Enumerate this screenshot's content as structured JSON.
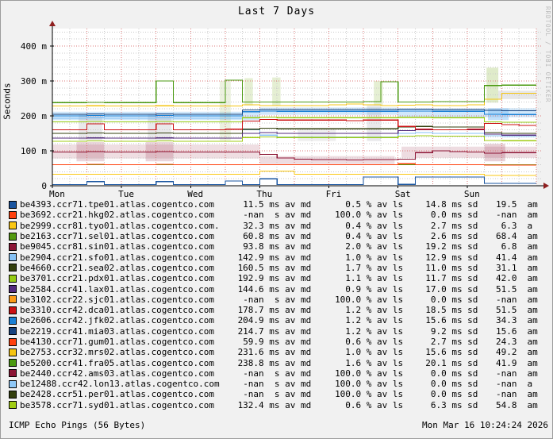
{
  "title": "Last 7 Days",
  "y_axis_label": "Seconds",
  "watermark": "RRDTOOL / TOBI OETIKER",
  "footer": {
    "left": "ICMP Echo Pings (56 Bytes)",
    "right": "Mon Mar 16 10:24:24 2026"
  },
  "colors": {
    "page_bg": "#f1f1f1",
    "plot_bg": "#ffffff",
    "axis": "#000000",
    "arrow": "#8f1f1f",
    "grid_minor": "#c9c9c9",
    "grid_major": "#dd7a7a",
    "text": "#000000",
    "watermark": "#b9b9b9"
  },
  "chart_data": {
    "type": "line",
    "title": "Last 7 Days",
    "ylabel": "Seconds",
    "ylim_ms": [
      0,
      450
    ],
    "xlim_days": [
      0,
      7
    ],
    "x_step_hours": 6,
    "grid": "dotted, minor 20 ms / 6 h, major 100 ms / 12 h",
    "legend_position": "below",
    "x_ticks": [
      "Mon",
      "Tue",
      "Wed",
      "Thu",
      "Fri",
      "Sat",
      "Sun"
    ],
    "y_ticks": [
      {
        "v": 0,
        "label": "0"
      },
      {
        "v": 100,
        "label": "100 m"
      },
      {
        "v": 200,
        "label": "200 m"
      },
      {
        "v": 300,
        "label": "300 m"
      },
      {
        "v": 400,
        "label": "400 m"
      }
    ],
    "series": [
      {
        "name": "be4393.ccr71.tpe01.atlas.cogentco.com",
        "color": "#1a55a0",
        "av_md": "11.5 ms av md",
        "av_ls": "0.5 % av ls",
        "sd": "14.8 ms sd",
        "am_val": "19.5",
        "am_unit": "am",
        "values": [
          3,
          3,
          12,
          3,
          3,
          3,
          12,
          3,
          3,
          3,
          14,
          3,
          20,
          3,
          3,
          3,
          3,
          3,
          25,
          25,
          4,
          25,
          25,
          25,
          25,
          7,
          7,
          7,
          7
        ]
      },
      {
        "name": "be3692.ccr21.hkg02.atlas.cogentco.com",
        "color": "#ff400d",
        "av_md": "-nan  s av md",
        "av_ls": "100.0 % av ls",
        "sd": "0.0 ms sd",
        "am_val": "-nan",
        "am_unit": "am",
        "values": null
      },
      {
        "name": "be2999.ccr81.tyo01.atlas.cogentco.com.",
        "color": "#fac713",
        "av_md": "32.3 ms av md",
        "av_ls": "0.4 % av ls",
        "sd": "2.7 ms sd",
        "am_val": "6.3",
        "am_unit": "a",
        "values": [
          33,
          33,
          33,
          33,
          33,
          33,
          33,
          33,
          33,
          33,
          33,
          33,
          42,
          42,
          33,
          33,
          33,
          33,
          33,
          33,
          33,
          33,
          33,
          33,
          33,
          30,
          30,
          30,
          30
        ]
      },
      {
        "name": "be2163.ccr71.sel01.atlas.cogentco.com",
        "color": "#539a10",
        "av_md": "60.8 ms av md",
        "av_ls": "0.4 % av ls",
        "sd": "2.6 ms sd",
        "am_val": "68.4",
        "am_unit": "am",
        "values": [
          60,
          60,
          60,
          60,
          60,
          60,
          60,
          60,
          60,
          60,
          60,
          60,
          60,
          60,
          60,
          60,
          60,
          60,
          60,
          60,
          60,
          60,
          60,
          60,
          60,
          60,
          60,
          60,
          60
        ]
      },
      {
        "name": "be9045.ccr81.sin01.atlas.cogentco.com",
        "color": "#8c1535",
        "av_md": "93.8 ms av md",
        "av_ls": "2.0 % av ls",
        "sd": "19.2 ms sd",
        "am_val": "6.8",
        "am_unit": "am",
        "values": [
          97,
          97,
          98,
          97,
          97,
          97,
          98,
          97,
          97,
          97,
          97,
          97,
          90,
          80,
          76,
          75,
          75,
          74,
          75,
          75,
          76,
          95,
          100,
          98,
          97,
          93,
          95,
          95,
          95
        ]
      },
      {
        "name": "be2904.ccr21.sfo01.atlas.cogentco.com",
        "color": "#86c2f5",
        "av_md": "142.9 ms av md",
        "av_ls": "1.0 % av ls",
        "sd": "12.9 ms sd",
        "am_val": "41.4",
        "am_unit": "am",
        "values": [
          193,
          193,
          195,
          193,
          193,
          193,
          195,
          193,
          193,
          193,
          193,
          160,
          145,
          140,
          140,
          140,
          140,
          140,
          140,
          140,
          150,
          152,
          150,
          150,
          150,
          143,
          141,
          141,
          141
        ]
      },
      {
        "name": "be4660.ccr21.sea02.atlas.cogentco.com",
        "color": "#333f0d",
        "av_md": "160.5 ms av md",
        "av_ls": "1.7 % av ls",
        "sd": "11.0 ms sd",
        "am_val": "31.1",
        "am_unit": "am",
        "values": [
          150,
          150,
          151,
          150,
          150,
          150,
          151,
          150,
          150,
          150,
          150,
          162,
          165,
          163,
          163,
          163,
          163,
          163,
          163,
          163,
          168,
          170,
          168,
          168,
          168,
          152,
          150,
          150,
          150
        ]
      },
      {
        "name": "be3701.ccr21.pdx01.atlas.cogentco.com",
        "color": "#95cc13",
        "av_md": "192.9 ms av md",
        "av_ls": "1.1 % av ls",
        "sd": "11.7 ms sd",
        "am_val": "42.0",
        "am_unit": "am",
        "values": [
          183,
          183,
          184,
          183,
          183,
          183,
          184,
          183,
          183,
          183,
          183,
          195,
          197,
          195,
          195,
          195,
          195,
          195,
          195,
          195,
          196,
          196,
          195,
          195,
          195,
          183,
          182,
          182,
          182
        ]
      },
      {
        "name": "be2584.ccr41.lax01.atlas.cogentco.com",
        "color": "#522a7d",
        "av_md": "144.6 ms av md",
        "av_ls": "0.9 % av ls",
        "sd": "17.0 ms sd",
        "am_val": "51.5",
        "am_unit": "am",
        "values": [
          136,
          136,
          137,
          136,
          136,
          136,
          137,
          136,
          136,
          136,
          136,
          150,
          152,
          150,
          150,
          150,
          150,
          150,
          150,
          150,
          158,
          160,
          160,
          160,
          160,
          148,
          145,
          145,
          145
        ]
      },
      {
        "name": "be3102.ccr22.sjc01.atlas.cogentco.com",
        "color": "#fb9b18",
        "av_md": "-nan  s av md",
        "av_ls": "100.0 % av ls",
        "sd": "0.0 ms sd",
        "am_val": "-nan",
        "am_unit": "am",
        "values": null
      },
      {
        "name": "be3310.ccr42.dca01.atlas.cogentco.com",
        "color": "#cc1012",
        "av_md": "178.7 ms av md",
        "av_ls": "1.2 % av ls",
        "sd": "18.5 ms sd",
        "am_val": "51.5",
        "am_unit": "am",
        "values": [
          160,
          160,
          177,
          160,
          160,
          160,
          177,
          160,
          160,
          160,
          162,
          185,
          190,
          188,
          188,
          188,
          188,
          186,
          188,
          188,
          170,
          162,
          160,
          160,
          162,
          178,
          175,
          173,
          173
        ]
      },
      {
        "name": "be2606.ccr42.jfk02.atlas.cogentco.com",
        "color": "#1a80d5",
        "av_md": "204.9 ms av md",
        "av_ls": "1.2 % av ls",
        "sd": "15.6 ms sd",
        "am_val": "34.3",
        "am_unit": "am",
        "values": [
          200,
          200,
          201,
          200,
          200,
          200,
          201,
          200,
          200,
          200,
          200,
          212,
          214,
          213,
          213,
          213,
          213,
          213,
          213,
          213,
          214,
          214,
          213,
          213,
          213,
          205,
          204,
          204,
          204
        ]
      },
      {
        "name": "be2219.ccr41.mia03.atlas.cogentco.com",
        "color": "#16427e",
        "av_md": "214.7 ms av md",
        "av_ls": "1.2 % av ls",
        "sd": "9.2 ms sd",
        "am_val": "15.6",
        "am_unit": "am",
        "values": [
          205,
          205,
          206,
          205,
          205,
          205,
          206,
          205,
          205,
          205,
          205,
          217,
          218,
          218,
          218,
          218,
          218,
          218,
          218,
          218,
          219,
          219,
          218,
          218,
          218,
          216,
          215,
          215,
          215
        ]
      },
      {
        "name": "be4130.ccr71.gum01.atlas.cogentco.com",
        "color": "#ff400d",
        "av_md": "59.9 ms av md",
        "av_ls": "0.6 % av ls",
        "sd": "2.7 ms sd",
        "am_val": "24.3",
        "am_unit": "am",
        "values": [
          60,
          60,
          61,
          60,
          60,
          60,
          61,
          60,
          60,
          60,
          60,
          60,
          60,
          60,
          60,
          60,
          60,
          60,
          60,
          60,
          63,
          60,
          60,
          60,
          60,
          59,
          59,
          59,
          59
        ]
      },
      {
        "name": "be2753.ccr32.mrs02.atlas.cogentco.com",
        "color": "#f5c411",
        "av_md": "231.6 ms av md",
        "av_ls": "1.0 % av ls",
        "sd": "15.6 ms sd",
        "am_val": "49.2",
        "am_unit": "am",
        "values": [
          228,
          228,
          229,
          228,
          228,
          228,
          229,
          228,
          228,
          228,
          228,
          232,
          230,
          230,
          230,
          230,
          232,
          234,
          232,
          230,
          231,
          232,
          230,
          230,
          232,
          248,
          265,
          265,
          265
        ]
      },
      {
        "name": "be5200.ccr41.fra05.atlas.cogentco.com",
        "color": "#4a9910",
        "av_md": "238.8 ms av md",
        "av_ls": "1.6 % av ls",
        "sd": "20.1 ms sd",
        "am_val": "41.9",
        "am_unit": "am",
        "values": [
          238,
          238,
          239,
          238,
          238,
          238,
          300,
          238,
          238,
          238,
          302,
          240,
          240,
          240,
          240,
          240,
          240,
          240,
          241,
          298,
          240,
          240,
          241,
          241,
          241,
          287,
          288,
          288,
          288
        ]
      },
      {
        "name": "be2440.ccr42.ams03.atlas.cogentco.com",
        "color": "#8c1535",
        "av_md": "-nan  s av md",
        "av_ls": "100.0 % av ls",
        "sd": "0.0 ms sd",
        "am_val": "-nan",
        "am_unit": "am",
        "values": null
      },
      {
        "name": "be12488.ccr42.lon13.atlas.cogentco.com",
        "color": "#8fc8f7",
        "av_md": "-nan  s av md",
        "av_ls": "100.0 % av ls",
        "sd": "0.0 ms sd",
        "am_val": "-nan",
        "am_unit": "a",
        "values": null
      },
      {
        "name": "be2428.ccr51.per01.atlas.cogentco.com",
        "color": "#333f0d",
        "av_md": "-nan  s av md",
        "av_ls": "100.0 % av ls",
        "sd": "0.0 ms sd",
        "am_val": "-nan",
        "am_unit": "am",
        "values": null
      },
      {
        "name": "be3578.ccr71.syd01.atlas.cogentco.com",
        "color": "#a0cc13",
        "av_md": "132.4 ms av md",
        "av_ls": "0.6 % av ls",
        "sd": "6.3 ms sd",
        "am_val": "54.8",
        "am_unit": "am",
        "values": [
          127,
          127,
          128,
          127,
          127,
          127,
          128,
          127,
          127,
          127,
          127,
          138,
          140,
          138,
          138,
          138,
          138,
          138,
          138,
          138,
          142,
          143,
          142,
          142,
          142,
          130,
          129,
          129,
          129
        ]
      }
    ],
    "smoke": [
      {
        "x0": 0.0,
        "x1": 3.0,
        "lo": 78,
        "hi": 118,
        "c": "rgba(140,21,53,0.14)"
      },
      {
        "x0": 0.35,
        "x1": 0.75,
        "lo": 70,
        "hi": 125,
        "c": "rgba(140,21,53,0.18)"
      },
      {
        "x0": 1.35,
        "x1": 1.75,
        "lo": 70,
        "hi": 125,
        "c": "rgba(140,21,53,0.18)"
      },
      {
        "x0": 3.0,
        "x1": 4.95,
        "lo": 62,
        "hi": 85,
        "c": "rgba(140,21,53,0.15)"
      },
      {
        "x0": 5.05,
        "x1": 7.0,
        "lo": 80,
        "hi": 112,
        "c": "rgba(140,21,53,0.15)"
      },
      {
        "x0": 6.25,
        "x1": 6.55,
        "lo": 70,
        "hi": 120,
        "c": "rgba(140,21,53,0.2)"
      },
      {
        "x0": 0.0,
        "x1": 3.0,
        "lo": 188,
        "hi": 212,
        "c": "rgba(134,194,245,0.38)"
      },
      {
        "x0": 3.0,
        "x1": 5.0,
        "lo": 203,
        "hi": 224,
        "c": "rgba(134,194,245,0.38)"
      },
      {
        "x0": 5.0,
        "x1": 7.0,
        "lo": 196,
        "hi": 222,
        "c": "rgba(134,194,245,0.38)"
      },
      {
        "x0": 0.38,
        "x1": 0.72,
        "lo": 130,
        "hi": 205,
        "c": "rgba(120,120,130,0.16)"
      },
      {
        "x0": 1.38,
        "x1": 1.72,
        "lo": 130,
        "hi": 205,
        "c": "rgba(120,120,130,0.16)"
      },
      {
        "x0": 2.42,
        "x1": 2.58,
        "lo": 130,
        "hi": 300,
        "c": "rgba(150,180,80,0.18)"
      },
      {
        "x0": 2.78,
        "x1": 2.9,
        "lo": 230,
        "hi": 308,
        "c": "rgba(150,190,80,0.25)"
      },
      {
        "x0": 3.18,
        "x1": 3.3,
        "lo": 230,
        "hi": 310,
        "c": "rgba(150,190,80,0.25)"
      },
      {
        "x0": 4.65,
        "x1": 4.78,
        "lo": 230,
        "hi": 300,
        "c": "rgba(150,190,80,0.25)"
      },
      {
        "x0": 3.55,
        "x1": 4.1,
        "lo": 128,
        "hi": 165,
        "c": "rgba(120,120,130,0.13)"
      },
      {
        "x0": 4.55,
        "x1": 4.75,
        "lo": 128,
        "hi": 230,
        "c": "rgba(120,120,130,0.16)"
      },
      {
        "x0": 6.28,
        "x1": 6.45,
        "lo": 238,
        "hi": 338,
        "c": "rgba(150,190,80,0.3)"
      },
      {
        "x0": 6.45,
        "x1": 7.0,
        "lo": 248,
        "hi": 272,
        "c": "rgba(160,160,160,0.25)"
      },
      {
        "x0": 6.3,
        "x1": 6.6,
        "lo": 188,
        "hi": 222,
        "c": "rgba(134,194,245,0.5)"
      }
    ]
  }
}
